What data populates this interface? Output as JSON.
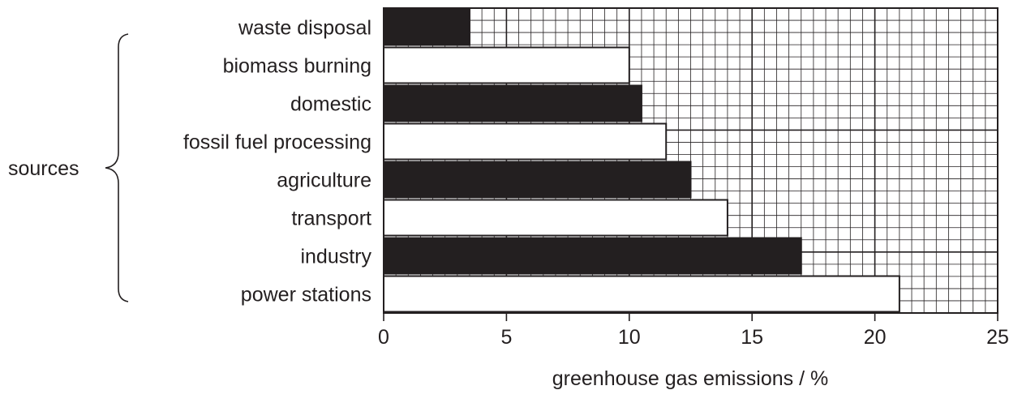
{
  "chart_data": {
    "type": "bar",
    "orientation": "horizontal",
    "categories": [
      "waste disposal",
      "biomass burning",
      "domestic",
      "fossil fuel processing",
      "agriculture",
      "transport",
      "industry",
      "power stations"
    ],
    "values": [
      3.5,
      10,
      10.5,
      11.5,
      12.5,
      14,
      17,
      21
    ],
    "bar_fills": [
      "#231f20",
      "#ffffff",
      "#231f20",
      "#ffffff",
      "#231f20",
      "#ffffff",
      "#231f20",
      "#ffffff"
    ],
    "xlabel": "greenhouse gas emissions / %",
    "ylabel": "sources",
    "xlim": [
      0,
      25
    ],
    "xticks": [
      "0",
      "5",
      "10",
      "15",
      "20",
      "25"
    ],
    "grid": true,
    "grid_minor_step": 0.5,
    "grid_major_step": 5
  },
  "colors": {
    "ink": "#231f20",
    "background": "#ffffff"
  }
}
